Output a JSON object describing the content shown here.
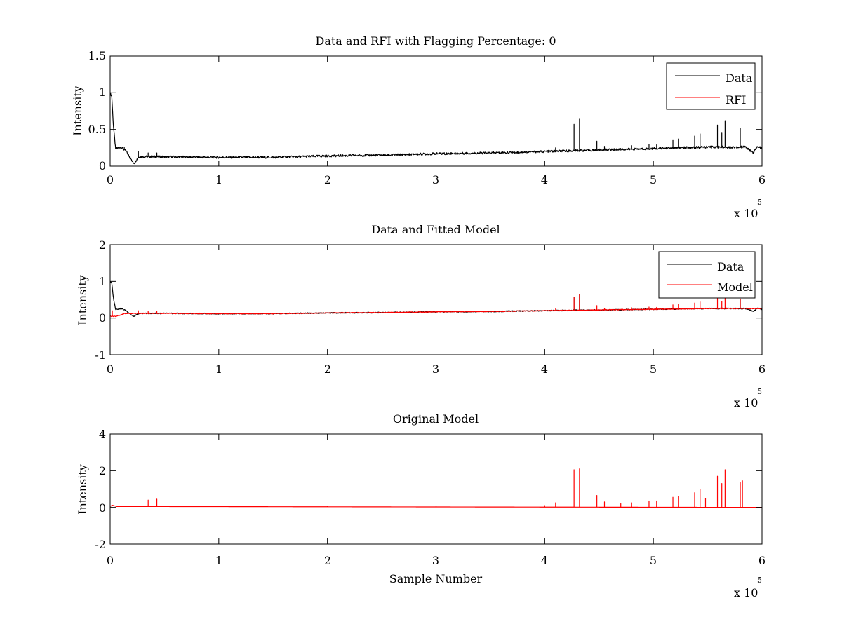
{
  "figure": {
    "background": "#ffffff",
    "axis_color": "#000000"
  },
  "chart_data": [
    {
      "type": "line",
      "title": "Data and RFI with Flagging Percentage: 0",
      "xlabel": "",
      "ylabel": "Intensity",
      "xlim": [
        0,
        600000
      ],
      "ylim": [
        0,
        1.5
      ],
      "xticks": [
        0,
        100000,
        200000,
        300000,
        400000,
        500000,
        600000
      ],
      "xtick_labels": [
        "0",
        "1",
        "2",
        "3",
        "4",
        "5",
        "6"
      ],
      "x_exponent": {
        "base": "x 10",
        "power": "5"
      },
      "yticks": [
        0,
        0.5,
        1,
        1.5
      ],
      "ytick_labels": [
        "0",
        "0.5",
        "1",
        "1.5"
      ],
      "legend": {
        "position": "top-right",
        "entries": [
          {
            "label": "Data",
            "color": "#000000"
          },
          {
            "label": "RFI",
            "color": "#ff0000"
          }
        ]
      },
      "series": [
        {
          "name": "Data",
          "color": "#000000",
          "baseline": [
            [
              0,
              1.0
            ],
            [
              1500,
              0.95
            ],
            [
              3000,
              0.55
            ],
            [
              5000,
              0.24
            ],
            [
              10000,
              0.26
            ],
            [
              15000,
              0.2
            ],
            [
              20000,
              0.07
            ],
            [
              22000,
              0.04
            ],
            [
              26000,
              0.12
            ],
            [
              30000,
              0.13
            ],
            [
              100000,
              0.12
            ],
            [
              150000,
              0.12
            ],
            [
              200000,
              0.14
            ],
            [
              250000,
              0.15
            ],
            [
              300000,
              0.17
            ],
            [
              350000,
              0.18
            ],
            [
              400000,
              0.2
            ],
            [
              450000,
              0.22
            ],
            [
              500000,
              0.24
            ],
            [
              550000,
              0.26
            ],
            [
              580000,
              0.26
            ],
            [
              585000,
              0.26
            ],
            [
              592000,
              0.18
            ],
            [
              596000,
              0.27
            ],
            [
              600000,
              0.24
            ]
          ],
          "spikes": [
            [
              5000,
              0.26
            ],
            [
              13000,
              0.26
            ],
            [
              26000,
              0.2
            ],
            [
              35000,
              0.18
            ],
            [
              43000,
              0.18
            ],
            [
              410000,
              0.25
            ],
            [
              427000,
              0.57
            ],
            [
              432000,
              0.64
            ],
            [
              448000,
              0.34
            ],
            [
              455000,
              0.27
            ],
            [
              480000,
              0.28
            ],
            [
              496000,
              0.3
            ],
            [
              503000,
              0.29
            ],
            [
              518000,
              0.36
            ],
            [
              523000,
              0.37
            ],
            [
              538000,
              0.41
            ],
            [
              543000,
              0.44
            ],
            [
              559000,
              0.56
            ],
            [
              563000,
              0.46
            ],
            [
              566000,
              0.62
            ],
            [
              580000,
              0.52
            ]
          ],
          "noise": 0.015
        },
        {
          "name": "RFI",
          "color": "#ff0000",
          "baseline": [],
          "spikes": [],
          "noise": 0
        }
      ]
    },
    {
      "type": "line",
      "title": "Data and Fitted Model",
      "xlabel": "",
      "ylabel": "Intensity",
      "xlim": [
        0,
        600000
      ],
      "ylim": [
        -1,
        2
      ],
      "xticks": [
        0,
        100000,
        200000,
        300000,
        400000,
        500000,
        600000
      ],
      "xtick_labels": [
        "0",
        "1",
        "2",
        "3",
        "4",
        "5",
        "6"
      ],
      "x_exponent": {
        "base": "x 10",
        "power": "5"
      },
      "yticks": [
        -1,
        0,
        1,
        2
      ],
      "ytick_labels": [
        "-1",
        "0",
        "1",
        "2"
      ],
      "legend": {
        "position": "top-right",
        "entries": [
          {
            "label": "Data",
            "color": "#000000"
          },
          {
            "label": "Model",
            "color": "#ff0000"
          }
        ]
      },
      "series": [
        {
          "name": "Data",
          "color": "#000000",
          "baseline": [
            [
              0,
              1.0
            ],
            [
              1500,
              0.95
            ],
            [
              3000,
              0.55
            ],
            [
              5000,
              0.24
            ],
            [
              10000,
              0.26
            ],
            [
              15000,
              0.2
            ],
            [
              20000,
              0.07
            ],
            [
              22000,
              0.04
            ],
            [
              26000,
              0.12
            ],
            [
              30000,
              0.13
            ],
            [
              100000,
              0.12
            ],
            [
              150000,
              0.12
            ],
            [
              200000,
              0.14
            ],
            [
              250000,
              0.15
            ],
            [
              300000,
              0.17
            ],
            [
              350000,
              0.18
            ],
            [
              400000,
              0.2
            ],
            [
              450000,
              0.22
            ],
            [
              500000,
              0.24
            ],
            [
              550000,
              0.26
            ],
            [
              580000,
              0.26
            ],
            [
              585000,
              0.26
            ],
            [
              592000,
              0.18
            ],
            [
              596000,
              0.27
            ],
            [
              600000,
              0.24
            ]
          ],
          "spikes": [
            [
              427000,
              0.57
            ],
            [
              432000,
              0.64
            ],
            [
              580000,
              0.52
            ]
          ],
          "noise": 0.015
        },
        {
          "name": "Model",
          "color": "#ff0000",
          "baseline": [
            [
              0,
              0.05
            ],
            [
              5000,
              0.05
            ],
            [
              10000,
              0.08
            ],
            [
              12000,
              0.12
            ],
            [
              30000,
              0.13
            ],
            [
              100000,
              0.12
            ],
            [
              150000,
              0.12
            ],
            [
              200000,
              0.14
            ],
            [
              250000,
              0.15
            ],
            [
              300000,
              0.17
            ],
            [
              350000,
              0.18
            ],
            [
              400000,
              0.2
            ],
            [
              450000,
              0.22
            ],
            [
              500000,
              0.24
            ],
            [
              550000,
              0.26
            ],
            [
              600000,
              0.26
            ]
          ],
          "spikes": [
            [
              2000,
              0.2
            ],
            [
              26000,
              0.2
            ],
            [
              35000,
              0.18
            ],
            [
              43000,
              0.18
            ],
            [
              410000,
              0.25
            ],
            [
              427000,
              0.57
            ],
            [
              432000,
              0.64
            ],
            [
              448000,
              0.34
            ],
            [
              455000,
              0.27
            ],
            [
              480000,
              0.28
            ],
            [
              496000,
              0.3
            ],
            [
              503000,
              0.29
            ],
            [
              518000,
              0.36
            ],
            [
              523000,
              0.37
            ],
            [
              538000,
              0.41
            ],
            [
              543000,
              0.44
            ],
            [
              559000,
              0.56
            ],
            [
              563000,
              0.46
            ],
            [
              566000,
              0.62
            ],
            [
              580000,
              0.52
            ]
          ],
          "noise": 0.01
        }
      ]
    },
    {
      "type": "line",
      "title": "Original Model",
      "xlabel": "Sample Number",
      "ylabel": "Intensity",
      "xlim": [
        0,
        600000
      ],
      "ylim": [
        -2,
        4
      ],
      "xticks": [
        0,
        100000,
        200000,
        300000,
        400000,
        500000,
        600000
      ],
      "xtick_labels": [
        "0",
        "1",
        "2",
        "3",
        "4",
        "5",
        "6"
      ],
      "x_exponent": {
        "base": "x 10",
        "power": "5"
      },
      "yticks": [
        -2,
        0,
        2,
        4
      ],
      "ytick_labels": [
        "-2",
        "0",
        "2",
        "4"
      ],
      "legend": null,
      "series": [
        {
          "name": "",
          "color": "#ff0000",
          "baseline": [
            [
              0,
              0.05
            ],
            [
              2000,
              0.12
            ],
            [
              6000,
              0.05
            ],
            [
              600000,
              0.0
            ]
          ],
          "spikes": [
            [
              35000,
              0.4
            ],
            [
              43000,
              0.45
            ],
            [
              100000,
              0.08
            ],
            [
              200000,
              0.08
            ],
            [
              300000,
              0.08
            ],
            [
              400000,
              0.1
            ],
            [
              410000,
              0.25
            ],
            [
              427000,
              2.05
            ],
            [
              432000,
              2.1
            ],
            [
              448000,
              0.65
            ],
            [
              455000,
              0.3
            ],
            [
              470000,
              0.2
            ],
            [
              480000,
              0.25
            ],
            [
              496000,
              0.35
            ],
            [
              503000,
              0.35
            ],
            [
              518000,
              0.55
            ],
            [
              523000,
              0.6
            ],
            [
              538000,
              0.8
            ],
            [
              543000,
              1.0
            ],
            [
              548000,
              0.5
            ],
            [
              559000,
              1.7
            ],
            [
              563000,
              1.3
            ],
            [
              566000,
              2.05
            ],
            [
              580000,
              1.35
            ],
            [
              582000,
              1.45
            ]
          ],
          "noise": 0.0
        }
      ]
    }
  ]
}
